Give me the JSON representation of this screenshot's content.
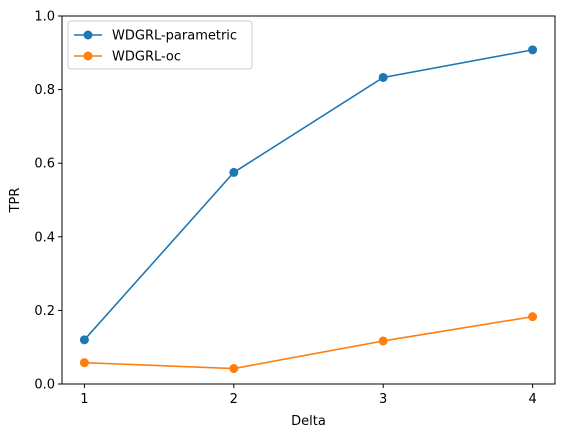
{
  "chart_data": {
    "type": "line",
    "title": "",
    "xlabel": "Delta",
    "ylabel": "TPR",
    "x": [
      1,
      2,
      3,
      4
    ],
    "xticks": [
      "1",
      "2",
      "3",
      "4"
    ],
    "yticks": [
      "0.0",
      "0.2",
      "0.4",
      "0.6",
      "0.8",
      "1.0"
    ],
    "xlim": [
      0.85,
      4.15
    ],
    "ylim": [
      0,
      1.0
    ],
    "grid": false,
    "legend_position": "top-left",
    "series": [
      {
        "name": "WDGRL-parametric",
        "color": "#1f77b4",
        "marker": "circle",
        "values": [
          0.12,
          0.575,
          0.833,
          0.908
        ]
      },
      {
        "name": "WDGRL-oc",
        "color": "#ff7f0e",
        "marker": "circle",
        "values": [
          0.058,
          0.042,
          0.117,
          0.183
        ]
      }
    ]
  }
}
